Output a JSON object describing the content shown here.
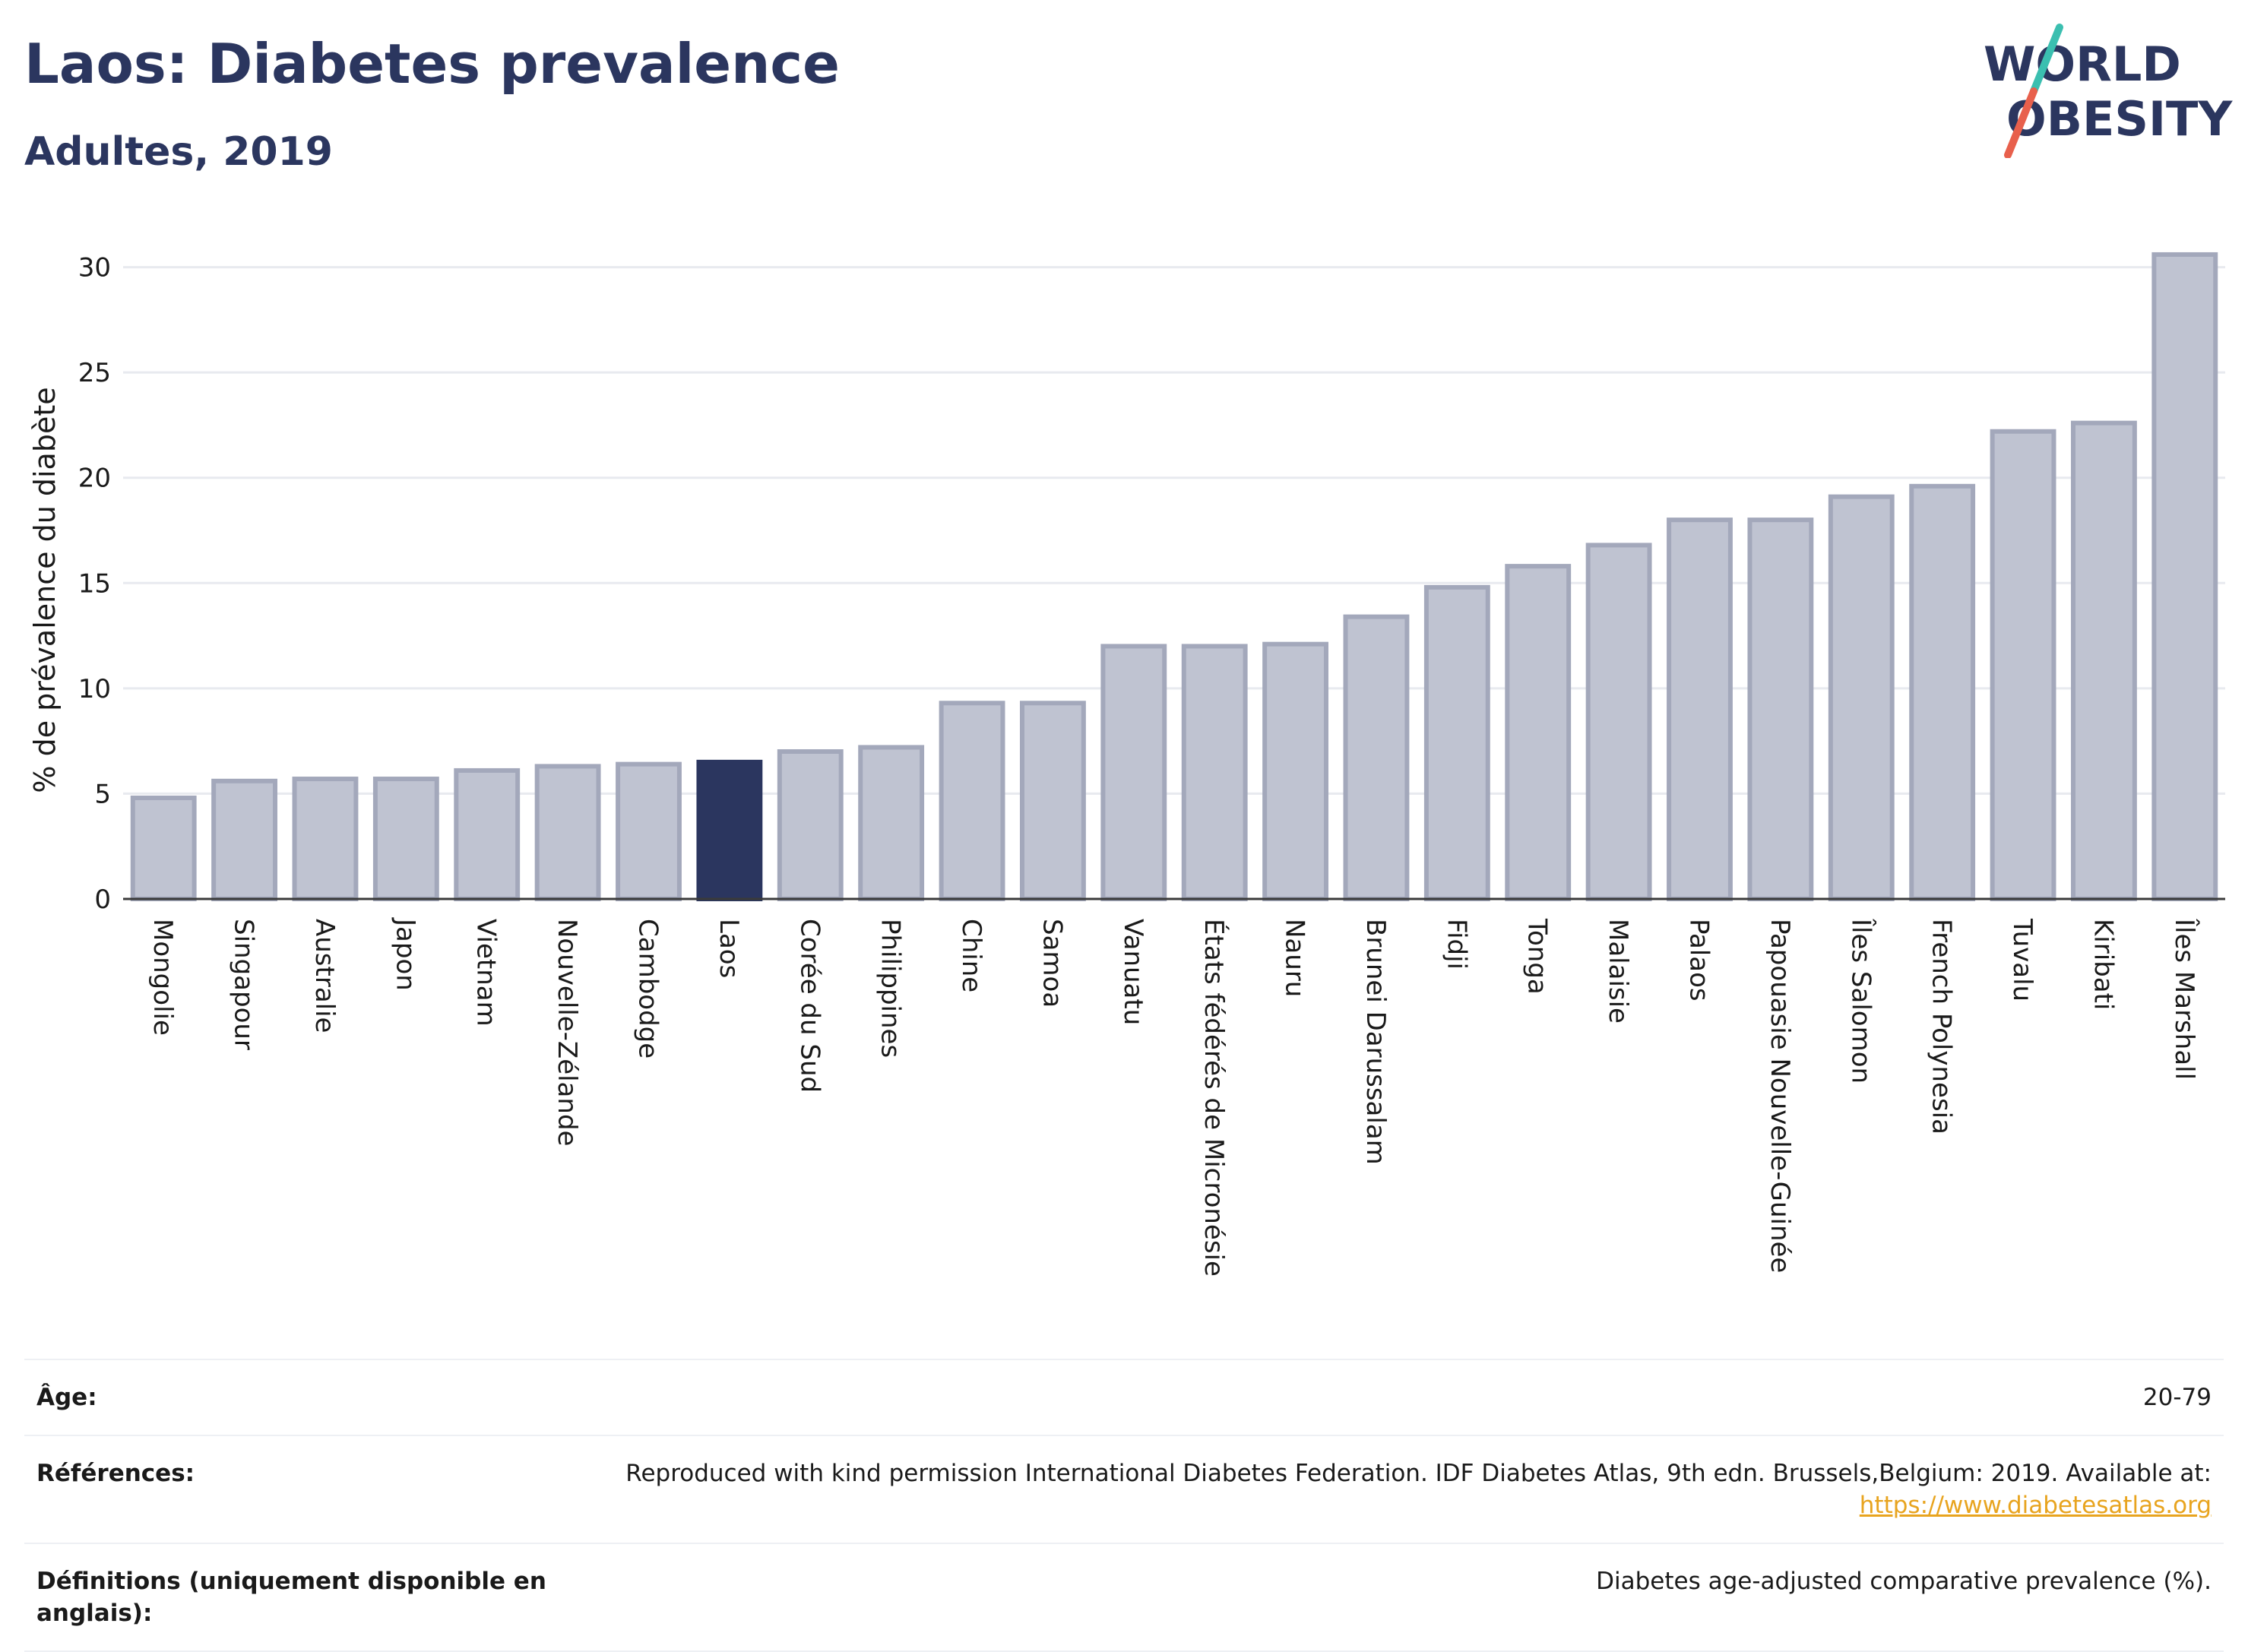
{
  "header": {
    "title": "Laos: Diabetes prevalence",
    "subtitle": "Adultes, 2019"
  },
  "logo": {
    "line1": "WORLD",
    "line2": "OBESITY",
    "colors": {
      "text": "#2b365f",
      "slash_top": "#3bbfb0",
      "slash_bottom": "#e8604c"
    }
  },
  "chart_data": {
    "type": "bar",
    "title": "Laos: Diabetes prevalence",
    "subtitle": "Adultes, 2019",
    "xlabel": "",
    "ylabel": "% de prévalence du diabète",
    "ylim": [
      0,
      31.5
    ],
    "yticks": [
      0,
      5,
      10,
      15,
      20,
      25,
      30
    ],
    "grid": true,
    "highlight": "Laos",
    "colors": {
      "default": "#bfc3d1",
      "default_stroke": "#a3a8bb",
      "highlight": "#2b365f"
    },
    "categories": [
      "Mongolie",
      "Singapour",
      "Australie",
      "Japon",
      "Vietnam",
      "Nouvelle-Zélande",
      "Cambodge",
      "Laos",
      "Corée du Sud",
      "Philippines",
      "Chine",
      "Samoa",
      "Vanuatu",
      "États fédérés de Micronésie",
      "Nauru",
      "Brunei Darussalam",
      "Fidji",
      "Tonga",
      "Malaisie",
      "Palaos",
      "Papouasie Nouvelle-Guinée",
      "Îles Salomon",
      "French Polynesia",
      "Tuvalu",
      "Kiribati",
      "Îles Marshall"
    ],
    "values": [
      4.8,
      5.6,
      5.7,
      5.7,
      6.1,
      6.3,
      6.4,
      6.5,
      7.0,
      7.2,
      9.3,
      9.3,
      12.0,
      12.0,
      12.1,
      13.4,
      14.8,
      15.8,
      16.8,
      18.0,
      18.0,
      19.1,
      19.6,
      22.2,
      22.6,
      30.6
    ]
  },
  "info": {
    "age_label": "Âge:",
    "age_value": "20-79",
    "references_label": "Références:",
    "references_text": "Reproduced with kind permission International Diabetes Federation. IDF Diabetes Atlas, 9th edn. Brussels,Belgium: 2019. Available at:",
    "references_link": "https://www.diabetesatlas.org",
    "definitions_label": "Définitions (uniquement disponible en anglais):",
    "definitions_text": "Diabetes age-adjusted comparative prevalence (%)."
  }
}
